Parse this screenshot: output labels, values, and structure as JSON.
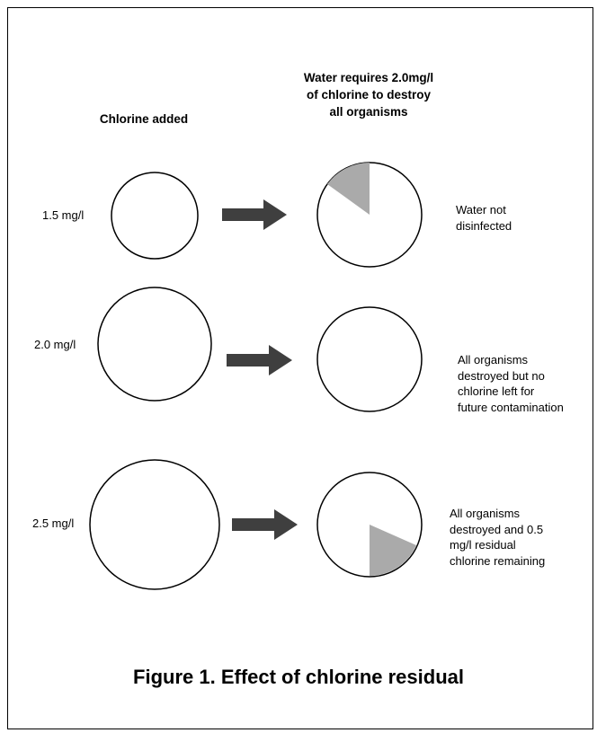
{
  "headers": {
    "left": "Chlorine added",
    "right": "Water requires 2.0mg/l\nof chlorine to destroy\nall organisms"
  },
  "rows": [
    {
      "dose": "1.5 mg/l",
      "note": "Water not\ndisinfected"
    },
    {
      "dose": "2.0 mg/l",
      "note": "All organisms\ndestroyed but no\nchlorine left for\nfuture contamination"
    },
    {
      "dose": "2.5 mg/l",
      "note": "All organisms\ndestroyed and 0.5\nmg/l residual\nchlorine remaining"
    }
  ],
  "caption": "Figure 1. Effect of chlorine residual",
  "colors": {
    "arrow": "#3f3f3f",
    "shaded_sector": "#aaaaaa",
    "outline": "#000000"
  }
}
